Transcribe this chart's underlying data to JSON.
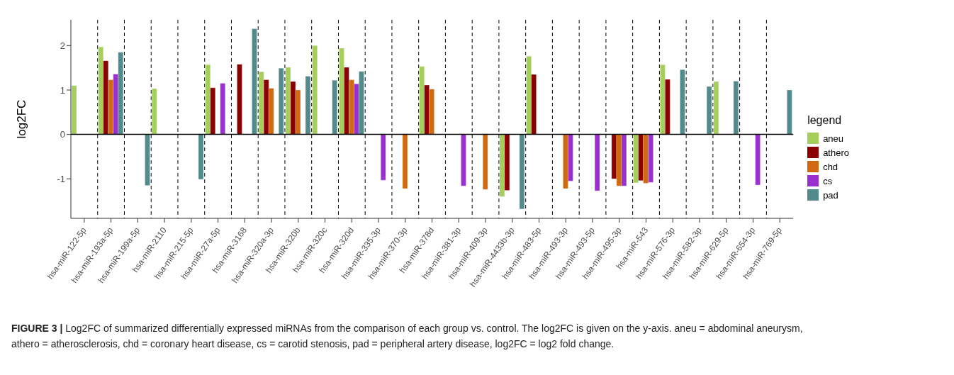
{
  "chart_data": {
    "type": "bar",
    "ylabel": "log2FC",
    "legend_title": "legend",
    "categories": [
      "hsa-miR-122-5p",
      "hsa-miR-193a-5p",
      "hsa-miR-199a-5p",
      "hsa-miR-2110",
      "hsa-miR-215-5p",
      "hsa-miR-27a-5p",
      "hsa-miR-3168",
      "hsa-miR-320a-3p",
      "hsa-miR-320b",
      "hsa-miR-320c",
      "hsa-miR-320d",
      "hsa-miR-335-3p",
      "hsa-miR-370-3p",
      "hsa-miR-378d",
      "hsa-miR-381-3p",
      "hsa-miR-409-3p",
      "hsa-miR-4433b-3p",
      "hsa-miR-483-5p",
      "hsa-miR-493-3p",
      "hsa-miR-493-5p",
      "hsa-miR-495-3p",
      "hsa-miR-543",
      "hsa-miR-576-3p",
      "hsa-miR-582-3p",
      "hsa-miR-629-5p",
      "hsa-miR-654-3p",
      "hsa-miR-769-5p"
    ],
    "series": [
      {
        "name": "aneu",
        "color": "#a3cf5a",
        "values": [
          1.1,
          1.97,
          null,
          1.03,
          null,
          1.57,
          null,
          1.41,
          1.51,
          2.0,
          1.94,
          null,
          null,
          1.53,
          null,
          null,
          -1.4,
          1.76,
          null,
          null,
          null,
          -1.09,
          1.57,
          null,
          1.19,
          null,
          null
        ]
      },
      {
        "name": "athero",
        "color": "#8b0000",
        "values": [
          null,
          1.66,
          null,
          null,
          null,
          1.05,
          1.58,
          1.23,
          1.19,
          null,
          1.51,
          null,
          null,
          1.11,
          null,
          null,
          -1.26,
          1.35,
          null,
          null,
          -1.0,
          -1.04,
          1.24,
          null,
          null,
          null,
          null
        ]
      },
      {
        "name": "chd",
        "color": "#d2690e",
        "values": [
          null,
          1.23,
          null,
          null,
          null,
          null,
          null,
          1.04,
          1.0,
          null,
          1.23,
          null,
          -1.22,
          1.02,
          null,
          -1.24,
          null,
          null,
          -1.22,
          null,
          -1.16,
          -1.1,
          null,
          null,
          null,
          null,
          null
        ]
      },
      {
        "name": "cs",
        "color": "#9b30d0",
        "values": [
          null,
          1.36,
          null,
          null,
          null,
          1.15,
          null,
          null,
          null,
          null,
          1.14,
          -1.03,
          null,
          null,
          -1.16,
          null,
          null,
          null,
          -1.05,
          -1.27,
          -1.16,
          -1.08,
          null,
          null,
          null,
          -1.14,
          null
        ]
      },
      {
        "name": "pad",
        "color": "#528b8b",
        "values": [
          null,
          1.85,
          -1.15,
          null,
          -1.01,
          null,
          2.38,
          1.49,
          1.31,
          1.22,
          1.42,
          null,
          null,
          null,
          null,
          null,
          -1.68,
          null,
          null,
          null,
          null,
          null,
          1.46,
          1.08,
          1.2,
          null,
          1.0
        ]
      }
    ],
    "ylim": [
      -1.89,
      2.58
    ],
    "yticks": [
      -1,
      0,
      1,
      2
    ],
    "grid": "x",
    "legend": "right",
    "ref_lines": [
      {
        "axis": "y",
        "value": 0,
        "color": "#000000",
        "line_style": "solid"
      }
    ],
    "annotations": [
      "FIGURE 3 |",
      "Log2FC of summarized differentially expressed miRNAs from the comparison of each group vs. control. The log2FC is given on the y-axis. aneu = abdominal aneurysm, athero = atherosclerosis, chd = coronary heart disease, cs = carotid stenosis, pad = peripheral artery disease, log2FC = log2 fold change."
    ]
  }
}
